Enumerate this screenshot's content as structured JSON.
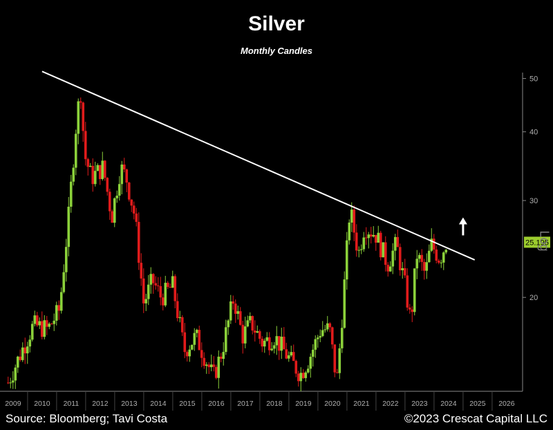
{
  "chart_data": {
    "type": "candlestick",
    "title": "Silver",
    "subtitle": "Monthly Candles",
    "scale": "log",
    "y_ticks": [
      20,
      30,
      40,
      50
    ],
    "ylim": [
      13.5,
      52
    ],
    "x_ticks": [
      "2009",
      "2010",
      "2011",
      "2012",
      "2013",
      "2014",
      "2015",
      "2016",
      "2017",
      "2018",
      "2019",
      "2020",
      "2021",
      "2022",
      "2023",
      "2024",
      "2025",
      "2026"
    ],
    "last_price_label": "25.195",
    "y_axis_note": "Log",
    "trendline": [
      {
        "x": 2010.0,
        "y": 51.5
      },
      {
        "x": 2024.9,
        "y": 23.4
      }
    ],
    "arrow_at": {
      "x": 2024.5,
      "y": 27.0
    },
    "anchors": [
      [
        2008.83,
        14.0
      ],
      [
        2009.3,
        16.0
      ],
      [
        2009.7,
        17.8
      ],
      [
        2010.2,
        17.5
      ],
      [
        2010.6,
        19.0
      ],
      [
        2010.9,
        27.5
      ],
      [
        2011.2,
        43.0
      ],
      [
        2011.35,
        48.0
      ],
      [
        2011.45,
        36.5
      ],
      [
        2011.7,
        33.0
      ],
      [
        2012.1,
        34.5
      ],
      [
        2012.4,
        28.0
      ],
      [
        2012.7,
        34.5
      ],
      [
        2012.9,
        33.0
      ],
      [
        2013.2,
        28.0
      ],
      [
        2013.5,
        19.5
      ],
      [
        2013.8,
        21.5
      ],
      [
        2014.1,
        20.0
      ],
      [
        2014.5,
        21.0
      ],
      [
        2014.9,
        16.0
      ],
      [
        2015.3,
        17.0
      ],
      [
        2015.9,
        14.3
      ],
      [
        2016.2,
        16.0
      ],
      [
        2016.6,
        20.0
      ],
      [
        2016.9,
        17.0
      ],
      [
        2017.2,
        18.0
      ],
      [
        2017.6,
        16.5
      ],
      [
        2018.0,
        17.0
      ],
      [
        2018.5,
        15.5
      ],
      [
        2018.9,
        14.5
      ],
      [
        2019.2,
        15.5
      ],
      [
        2019.6,
        17.5
      ],
      [
        2019.9,
        17.5
      ],
      [
        2020.15,
        14.0
      ],
      [
        2020.3,
        17.5
      ],
      [
        2020.6,
        29.0
      ],
      [
        2020.9,
        24.0
      ],
      [
        2021.1,
        27.0
      ],
      [
        2021.5,
        26.0
      ],
      [
        2021.9,
        23.0
      ],
      [
        2022.2,
        25.0
      ],
      [
        2022.5,
        21.0
      ],
      [
        2022.7,
        18.0
      ],
      [
        2022.9,
        24.0
      ],
      [
        2023.2,
        22.0
      ],
      [
        2023.4,
        25.0
      ],
      [
        2023.7,
        23.5
      ],
      [
        2023.92,
        25.2
      ]
    ]
  },
  "footer": {
    "source": "Source: Bloomberg; Tavi Costa",
    "copyright": "©2023 Crescat Capital LLC"
  },
  "colors": {
    "up": "#8bd13a",
    "down": "#e01b1b",
    "axis": "#8a8a8a",
    "tick_text": "#b0b0b0",
    "price_tag_bg": "#9ccc2e",
    "trendline": "#ffffff"
  }
}
